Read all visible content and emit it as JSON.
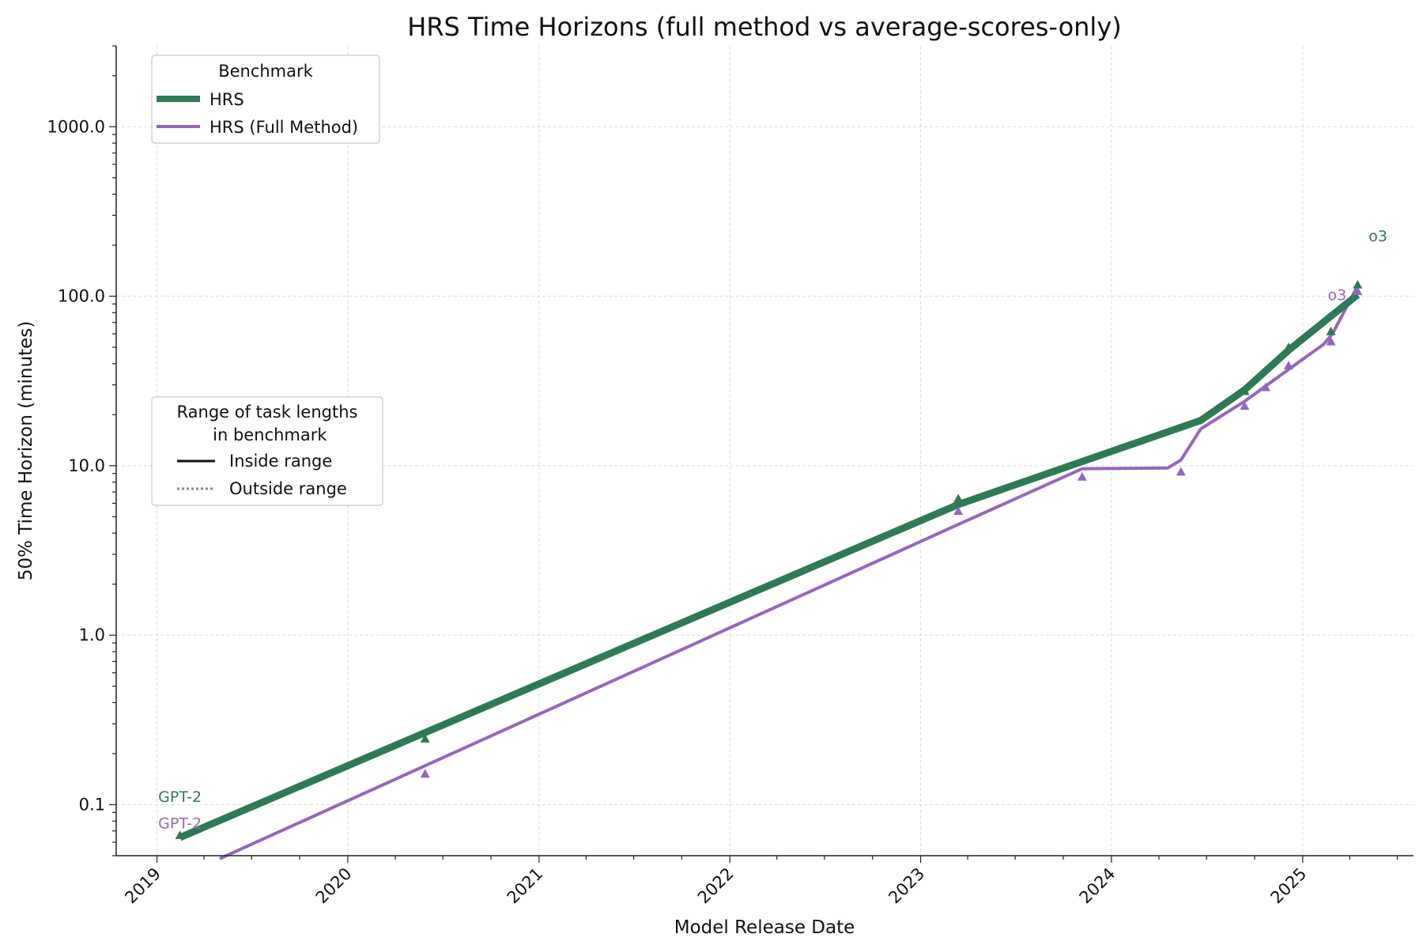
{
  "chart_data": {
    "type": "line",
    "title": "HRS Time Horizons (full method vs average-scores-only)",
    "xlabel": "Model Release Date",
    "ylabel": "50% Time Horizon (minutes)",
    "yscale": "log",
    "ylim": [
      0.05,
      3000
    ],
    "xlim": [
      "2018-10-15",
      "2025-08-01"
    ],
    "x_tick_labels": [
      "2019",
      "2020",
      "2021",
      "2022",
      "2023",
      "2024",
      "2025"
    ],
    "y_tick_labels": [
      "0.1",
      "1.0",
      "10.0",
      "100.0",
      "1000.0"
    ],
    "grid": true,
    "legend_benchmark": {
      "title": "Benchmark",
      "placement": "top-left",
      "entries": [
        "HRS",
        "HRS (Full Method)"
      ]
    },
    "legend_range": {
      "title_line1": "Range of task lengths",
      "title_line2": " in benchmark",
      "placement": "center-left",
      "entries": [
        "Inside range",
        "Outside range"
      ]
    },
    "series": [
      {
        "name": "HRS",
        "color": "#2e7a57",
        "line": [
          [
            "2019-02-14",
            0.064
          ],
          [
            "2023-03-14",
            5.9
          ],
          [
            "2024-06-20",
            18.5
          ],
          [
            "2024-09-12",
            28
          ],
          [
            "2024-12-05",
            48
          ],
          [
            "2025-04-16",
            102
          ]
        ],
        "points": [
          [
            "2019-02-14",
            0.066
          ],
          [
            "2020-05-28",
            0.245
          ],
          [
            "2023-03-14",
            6.4
          ],
          [
            "2024-09-12",
            27.5
          ],
          [
            "2024-12-05",
            50
          ],
          [
            "2025-02-24",
            62
          ],
          [
            "2025-04-16",
            117
          ]
        ]
      },
      {
        "name": "HRS (Full Method)",
        "color": "#9467bd",
        "line": [
          [
            "2019-05-01",
            0.048
          ],
          [
            "2023-03-14",
            4.5
          ],
          [
            "2023-11-06",
            9.6
          ],
          [
            "2024-04-18",
            9.7
          ],
          [
            "2024-05-13",
            10.8
          ],
          [
            "2024-06-20",
            16.5
          ],
          [
            "2024-09-12",
            24
          ],
          [
            "2024-12-05",
            37
          ],
          [
            "2025-02-10",
            52
          ],
          [
            "2025-02-27",
            60
          ],
          [
            "2025-04-16",
            115
          ]
        ],
        "points": [
          [
            "2020-05-28",
            0.152
          ],
          [
            "2023-03-14",
            5.4
          ],
          [
            "2023-11-06",
            8.6
          ],
          [
            "2024-05-13",
            9.2
          ],
          [
            "2024-09-12",
            22.5
          ],
          [
            "2024-10-22",
            29
          ],
          [
            "2024-12-05",
            39
          ],
          [
            "2025-02-24",
            54
          ],
          [
            "2025-04-16",
            107
          ]
        ]
      }
    ],
    "annotations": [
      {
        "text": "GPT-2",
        "series": "HRS",
        "x": "2019-02-14",
        "y": 0.112
      },
      {
        "text": "GPT-2",
        "series": "HRS (Full Method)",
        "x": "2019-02-14",
        "y": 0.078
      },
      {
        "text": "o3",
        "series": "HRS",
        "x": "2025-04-16",
        "y": 228
      },
      {
        "text": "o3",
        "series": "HRS (Full Method)",
        "x": "2025-04-16",
        "y": 102
      }
    ]
  }
}
